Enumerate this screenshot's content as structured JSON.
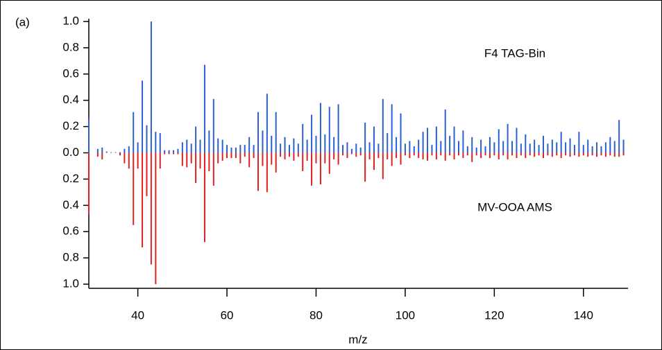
{
  "chart_data": {
    "type": "mirror-bar",
    "panel_label": "(a)",
    "x_label": "m/z",
    "x": [
      29,
      30,
      31,
      32,
      33,
      34,
      35,
      36,
      37,
      38,
      39,
      40,
      41,
      42,
      43,
      44,
      45,
      46,
      47,
      48,
      49,
      50,
      51,
      52,
      53,
      54,
      55,
      56,
      57,
      58,
      59,
      60,
      61,
      62,
      63,
      64,
      65,
      66,
      67,
      68,
      69,
      70,
      71,
      72,
      73,
      74,
      75,
      76,
      77,
      78,
      79,
      80,
      81,
      82,
      83,
      84,
      85,
      86,
      87,
      88,
      89,
      90,
      91,
      92,
      93,
      94,
      95,
      96,
      97,
      98,
      99,
      100,
      101,
      102,
      103,
      104,
      105,
      106,
      107,
      108,
      109,
      110,
      111,
      112,
      113,
      114,
      115,
      116,
      117,
      118,
      119,
      120,
      121,
      122,
      123,
      124,
      125,
      126,
      127,
      128,
      129,
      130,
      131,
      132,
      133,
      134,
      135,
      136,
      137,
      138,
      139,
      140,
      141,
      142,
      143,
      144,
      145,
      146,
      147,
      148,
      149
    ],
    "series": [
      {
        "name": "F4 TAG-Bin",
        "color": "#2b5fd0",
        "values": [
          0.26,
          0,
          0.03,
          0.04,
          0.01,
          0.005,
          0.005,
          0.005,
          0.03,
          0.05,
          0.31,
          0.08,
          0.55,
          0.21,
          1.0,
          0.16,
          0.15,
          0.02,
          0.02,
          0.02,
          0.03,
          0.08,
          0.1,
          0.07,
          0.2,
          0.1,
          0.67,
          0.17,
          0.41,
          0.11,
          0.1,
          0.06,
          0.04,
          0.04,
          0.06,
          0.06,
          0.12,
          0.06,
          0.31,
          0.17,
          0.45,
          0.13,
          0.31,
          0.07,
          0.12,
          0.06,
          0.11,
          0.07,
          0.22,
          0.1,
          0.29,
          0.13,
          0.38,
          0.14,
          0.35,
          0.12,
          0.37,
          0.06,
          0.08,
          0.03,
          0.07,
          0.04,
          0.23,
          0.08,
          0.2,
          0.07,
          0.41,
          0.15,
          0.37,
          0.12,
          0.3,
          0.07,
          0.09,
          0.05,
          0.1,
          0.16,
          0.19,
          0.06,
          0.2,
          0.09,
          0.33,
          0.13,
          0.2,
          0.09,
          0.17,
          0.05,
          0.12,
          0.04,
          0.1,
          0.05,
          0.12,
          0.08,
          0.18,
          0.09,
          0.22,
          0.09,
          0.19,
          0.07,
          0.14,
          0.07,
          0.1,
          0.06,
          0.13,
          0.07,
          0.1,
          0.08,
          0.16,
          0.08,
          0.11,
          0.06,
          0.16,
          0.06,
          0.1,
          0.05,
          0.08,
          0.05,
          0.08,
          0.12,
          0.09,
          0.25,
          0.1
        ]
      },
      {
        "name": "MV-OOA AMS",
        "color": "#e02020",
        "values": [
          -0.47,
          0,
          -0.03,
          -0.05,
          0,
          0,
          0,
          -0.02,
          -0.08,
          -0.12,
          -0.55,
          -0.12,
          -0.72,
          -0.33,
          -0.85,
          -1.0,
          -0.12,
          -0.01,
          -0.01,
          -0.01,
          -0.01,
          -0.1,
          -0.11,
          -0.08,
          -0.23,
          -0.12,
          -0.68,
          -0.14,
          -0.25,
          -0.08,
          -0.06,
          -0.04,
          -0.04,
          -0.04,
          -0.08,
          -0.03,
          -0.11,
          -0.04,
          -0.29,
          -0.1,
          -0.3,
          -0.09,
          -0.15,
          -0.03,
          -0.05,
          -0.03,
          -0.06,
          -0.03,
          -0.14,
          -0.06,
          -0.25,
          -0.08,
          -0.24,
          -0.08,
          -0.16,
          -0.05,
          -0.09,
          -0.02,
          -0.04,
          -0.01,
          -0.03,
          -0.02,
          -0.22,
          -0.05,
          -0.13,
          -0.04,
          -0.2,
          -0.05,
          -0.1,
          -0.04,
          -0.09,
          -0.02,
          -0.04,
          -0.02,
          -0.04,
          -0.05,
          -0.06,
          -0.02,
          -0.05,
          -0.02,
          -0.06,
          -0.02,
          -0.05,
          -0.02,
          -0.04,
          -0.02,
          -0.07,
          -0.02,
          -0.04,
          -0.02,
          -0.04,
          -0.02,
          -0.05,
          -0.02,
          -0.05,
          -0.02,
          -0.04,
          -0.02,
          -0.04,
          -0.02,
          -0.03,
          -0.02,
          -0.04,
          -0.02,
          -0.03,
          -0.02,
          -0.04,
          -0.02,
          -0.03,
          -0.02,
          -0.03,
          -0.02,
          -0.03,
          -0.02,
          -0.03,
          -0.02,
          -0.03,
          -0.02,
          -0.03,
          -0.03,
          -0.02
        ]
      }
    ],
    "xlim": [
      29,
      150
    ],
    "xticks": [
      40,
      60,
      80,
      100,
      120,
      140
    ],
    "ylim": [
      -1,
      1
    ],
    "yticks": [
      {
        "value": 1,
        "label": "1.0"
      },
      0.8,
      0.6,
      0.4,
      0.2,
      {
        "value": 0,
        "label": "0.0"
      },
      {
        "value": -0.2,
        "label": "0.2"
      },
      {
        "value": -0.4,
        "label": "0.4"
      },
      {
        "value": -0.6,
        "label": "0.6"
      },
      {
        "value": -0.8,
        "label": "0.8"
      },
      {
        "value": -1,
        "label": "1.0"
      }
    ],
    "grid": false
  }
}
